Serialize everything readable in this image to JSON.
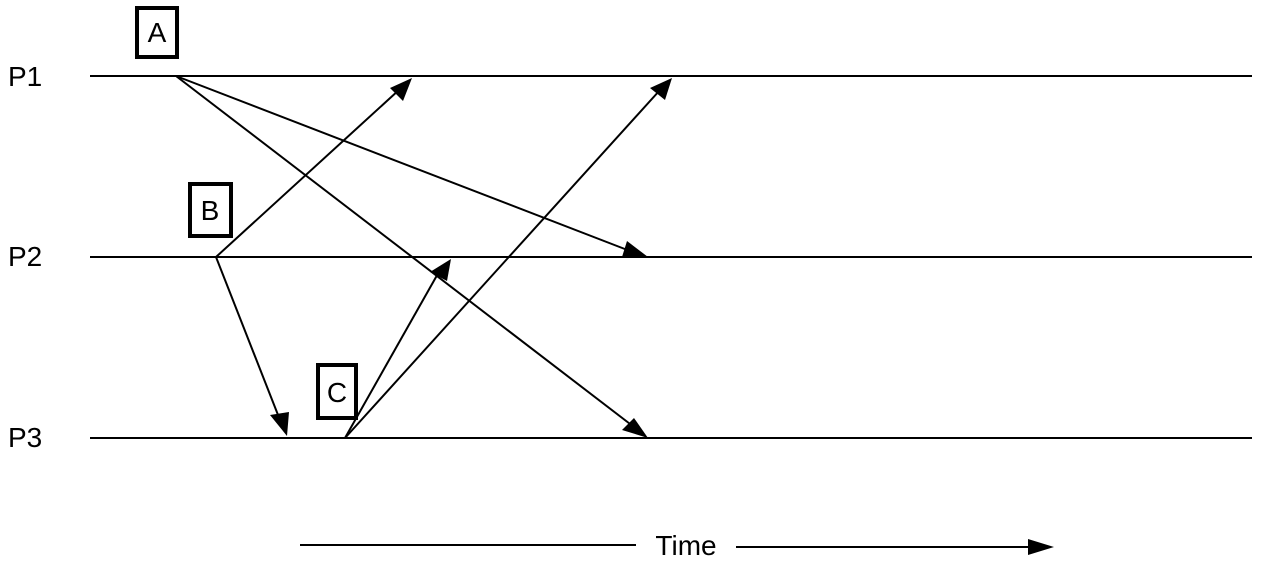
{
  "processes": [
    {
      "id": "p1",
      "label": "P1"
    },
    {
      "id": "p2",
      "label": "P2"
    },
    {
      "id": "p3",
      "label": "P3"
    }
  ],
  "events": [
    {
      "id": "a",
      "label": "A",
      "process": "P1"
    },
    {
      "id": "b",
      "label": "B",
      "process": "P2"
    },
    {
      "id": "c",
      "label": "C",
      "process": "P3"
    }
  ],
  "messages": [
    {
      "from": "P1",
      "to": "P2",
      "from_event": "A"
    },
    {
      "from": "P1",
      "to": "P3",
      "from_event": "A"
    },
    {
      "from": "P2",
      "to": "P1",
      "from_event": "B"
    },
    {
      "from": "P2",
      "to": "P3",
      "from_event": "B"
    },
    {
      "from": "P3",
      "to": "P2",
      "from_event": "C"
    },
    {
      "from": "P3",
      "to": "P1",
      "from_event": "C"
    }
  ],
  "time_axis": {
    "label": "Time"
  }
}
